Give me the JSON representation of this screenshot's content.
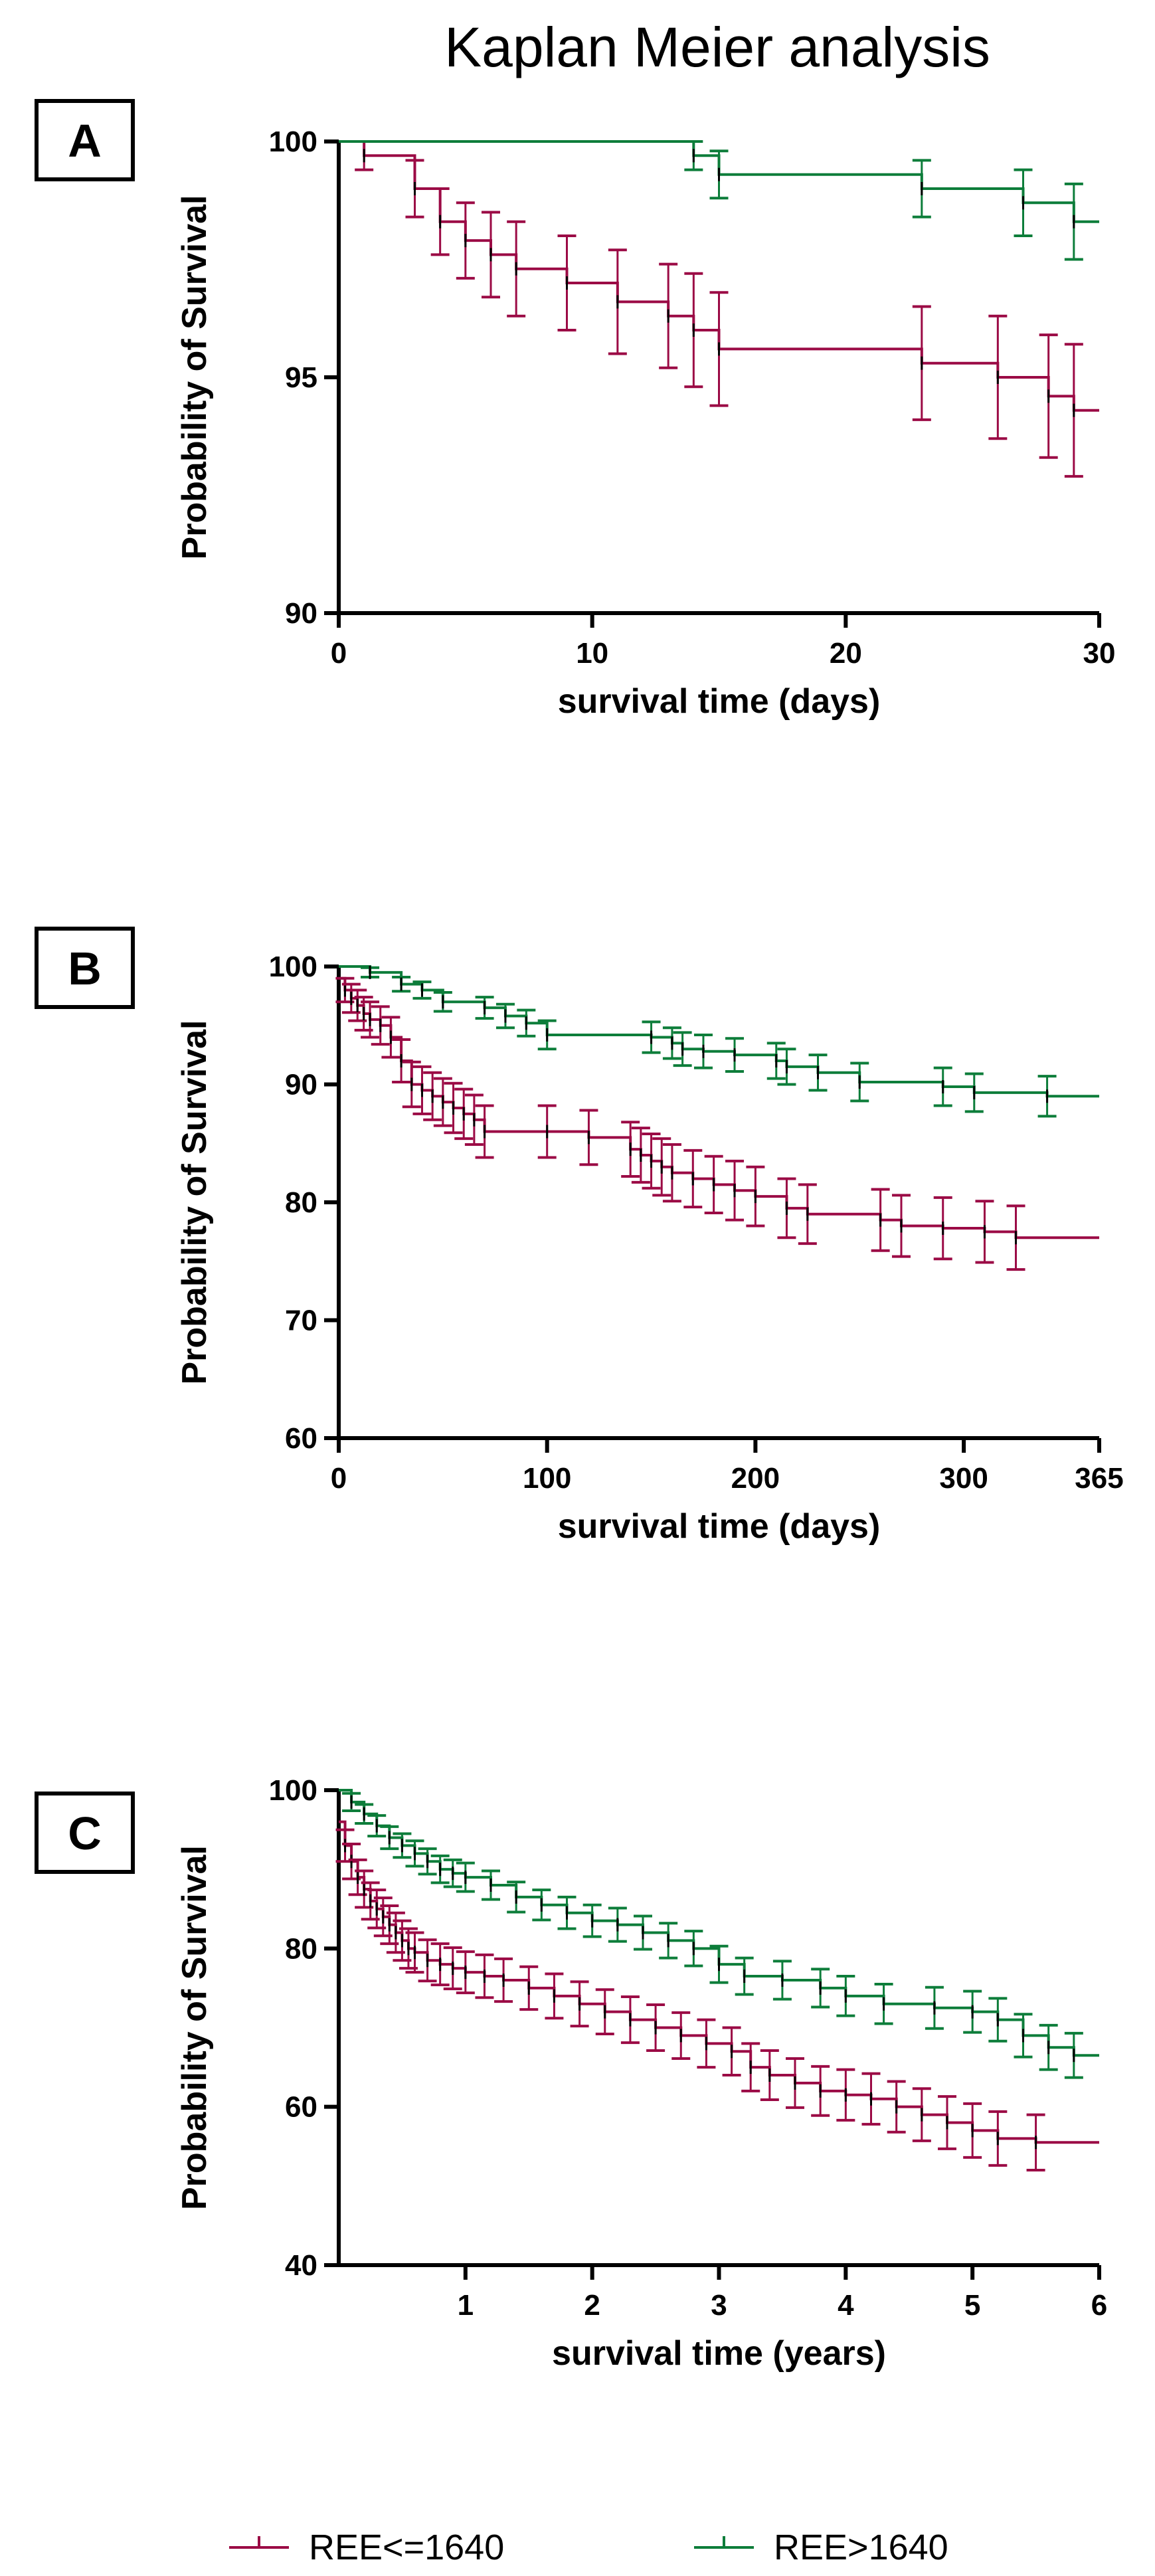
{
  "title": "Kaplan Meier analysis",
  "colors": {
    "low": "#9b0a45",
    "high": "#0d7d3a",
    "axis": "#000000",
    "censor": "#000000"
  },
  "legend": [
    {
      "label": "REE<=1640",
      "color": "#9b0a45"
    },
    {
      "label": "REE>1640",
      "color": "#0d7d3a"
    }
  ],
  "chart_data": [
    {
      "panel": "A",
      "type": "line",
      "step": true,
      "xlabel": "survival time (days)",
      "ylabel": "Probability of Survival",
      "xlim": [
        0,
        30
      ],
      "ylim": [
        90,
        100
      ],
      "xticks": [
        0,
        10,
        20,
        30
      ],
      "xtick_labels": [
        "0",
        "10",
        "20",
        "30"
      ],
      "yticks": [
        90,
        95,
        100
      ],
      "ytick_labels": [
        "90",
        "95",
        "100"
      ],
      "series": [
        {
          "name": "REE<=1640",
          "color": "#9b0a45",
          "x": [
            0,
            1,
            3,
            4,
            5,
            6,
            7,
            9,
            11,
            13,
            14,
            15,
            23,
            26,
            28,
            29
          ],
          "y": [
            100,
            99.7,
            99.0,
            98.3,
            97.9,
            97.6,
            97.3,
            97.0,
            96.6,
            96.3,
            96.0,
            95.6,
            95.3,
            95.0,
            94.6,
            94.3
          ],
          "err": [
            0,
            0.3,
            0.6,
            0.7,
            0.8,
            0.9,
            1.0,
            1.0,
            1.1,
            1.1,
            1.2,
            1.2,
            1.2,
            1.3,
            1.3,
            1.4
          ]
        },
        {
          "name": "REE>1640",
          "color": "#0d7d3a",
          "x": [
            0,
            14,
            15,
            23,
            27,
            29
          ],
          "y": [
            100,
            99.7,
            99.3,
            99.0,
            98.7,
            98.3
          ],
          "err": [
            0,
            0.3,
            0.5,
            0.6,
            0.7,
            0.8
          ]
        }
      ]
    },
    {
      "panel": "B",
      "type": "line",
      "step": true,
      "xlabel": "survival time (days)",
      "ylabel": "Probability of Survival",
      "xlim": [
        0,
        365
      ],
      "ylim": [
        60,
        100
      ],
      "xticks": [
        0,
        100,
        200,
        300,
        365
      ],
      "xtick_labels": [
        "0",
        "100",
        "200",
        "300",
        "365"
      ],
      "yticks": [
        60,
        70,
        80,
        90,
        100
      ],
      "ytick_labels": [
        "60",
        "70",
        "80",
        "90",
        "100"
      ],
      "series": [
        {
          "name": "REE<=1640",
          "color": "#9b0a45",
          "x": [
            0,
            3,
            6,
            9,
            12,
            15,
            20,
            25,
            30,
            35,
            40,
            45,
            50,
            55,
            60,
            65,
            70,
            100,
            120,
            140,
            145,
            150,
            155,
            160,
            170,
            180,
            190,
            200,
            215,
            225,
            260,
            270,
            290,
            310,
            325
          ],
          "y": [
            99,
            98,
            97.3,
            96.7,
            96,
            95.5,
            95,
            94,
            92,
            90,
            89.5,
            89,
            88.5,
            88,
            87.5,
            87,
            86,
            86,
            85.5,
            84.5,
            84,
            83.5,
            83,
            82.5,
            82,
            81.5,
            81,
            80.5,
            79.5,
            79,
            78.5,
            78,
            77.8,
            77.5,
            77
          ],
          "err": [
            0.8,
            1,
            1.2,
            1.3,
            1.4,
            1.5,
            1.6,
            1.7,
            1.8,
            1.9,
            2,
            2,
            2,
            2.1,
            2.1,
            2.1,
            2.2,
            2.2,
            2.3,
            2.3,
            2.3,
            2.3,
            2.4,
            2.4,
            2.4,
            2.4,
            2.5,
            2.5,
            2.5,
            2.5,
            2.6,
            2.6,
            2.6,
            2.6,
            2.7
          ]
        },
        {
          "name": "REE>1640",
          "color": "#0d7d3a",
          "x": [
            0,
            15,
            30,
            40,
            50,
            70,
            80,
            90,
            100,
            150,
            160,
            165,
            175,
            190,
            210,
            215,
            230,
            250,
            290,
            305,
            340
          ],
          "y": [
            100,
            99.5,
            98.5,
            98,
            97,
            96.5,
            95.8,
            95.2,
            94.2,
            94,
            93.5,
            93,
            92.8,
            92.5,
            92,
            91.5,
            91,
            90.2,
            89.8,
            89.3,
            89
          ],
          "err": [
            0,
            0.4,
            0.6,
            0.7,
            0.8,
            0.9,
            1,
            1.1,
            1.2,
            1.3,
            1.3,
            1.4,
            1.4,
            1.4,
            1.5,
            1.5,
            1.5,
            1.6,
            1.6,
            1.6,
            1.7
          ]
        }
      ]
    },
    {
      "panel": "C",
      "type": "line",
      "step": true,
      "xlabel": "survival time (years)",
      "ylabel": "Probability of Survival",
      "xlim": [
        0,
        6
      ],
      "ylim": [
        40,
        100
      ],
      "xticks": [
        1,
        2,
        3,
        4,
        5,
        6
      ],
      "xtick_labels": [
        "1",
        "2",
        "3",
        "4",
        "5",
        "6"
      ],
      "yticks": [
        40,
        60,
        80,
        100
      ],
      "ytick_labels": [
        "40",
        "60",
        "80",
        "100"
      ],
      "series": [
        {
          "name": "REE<=1640",
          "color": "#9b0a45",
          "x": [
            0,
            0.05,
            0.1,
            0.15,
            0.2,
            0.25,
            0.3,
            0.35,
            0.4,
            0.45,
            0.5,
            0.55,
            0.6,
            0.7,
            0.8,
            0.9,
            1.0,
            1.15,
            1.3,
            1.5,
            1.7,
            1.9,
            2.1,
            2.3,
            2.5,
            2.7,
            2.9,
            3.1,
            3.25,
            3.4,
            3.6,
            3.8,
            4.0,
            4.2,
            4.4,
            4.6,
            4.8,
            5.0,
            5.2,
            5.5
          ],
          "y": [
            96,
            93,
            91,
            89,
            87.5,
            86,
            85,
            84,
            83,
            82,
            81,
            80,
            79.5,
            78.5,
            78,
            77.5,
            77,
            76.5,
            76,
            75,
            74,
            73,
            72,
            71,
            70,
            69,
            68,
            67,
            65,
            64,
            63,
            62,
            61.5,
            61,
            60,
            59,
            58,
            57,
            56,
            55.5
          ],
          "err": [
            2,
            2,
            2.2,
            2.2,
            2.3,
            2.3,
            2.4,
            2.4,
            2.4,
            2.5,
            2.5,
            2.5,
            2.5,
            2.6,
            2.6,
            2.6,
            2.6,
            2.7,
            2.7,
            2.7,
            2.8,
            2.8,
            2.8,
            2.9,
            2.9,
            2.9,
            3,
            3,
            3,
            3.1,
            3.1,
            3.1,
            3.2,
            3.2,
            3.2,
            3.3,
            3.3,
            3.4,
            3.4,
            3.5
          ]
        },
        {
          "name": "REE>1640",
          "color": "#0d7d3a",
          "x": [
            0,
            0.1,
            0.2,
            0.3,
            0.4,
            0.5,
            0.6,
            0.7,
            0.8,
            0.9,
            1.0,
            1.2,
            1.4,
            1.6,
            1.8,
            2.0,
            2.2,
            2.4,
            2.6,
            2.8,
            3.0,
            3.2,
            3.5,
            3.8,
            4.0,
            4.3,
            4.7,
            5.0,
            5.2,
            5.4,
            5.6,
            5.8
          ],
          "y": [
            100,
            98.5,
            97,
            95.5,
            94,
            93,
            92,
            91,
            90,
            89.5,
            89,
            88,
            86.5,
            85.5,
            84.5,
            83.5,
            83,
            82,
            81,
            80,
            78,
            76.5,
            76,
            75,
            74,
            73,
            72.5,
            72,
            71,
            69,
            67.5,
            66.5
          ],
          "err": [
            0,
            1.1,
            1.2,
            1.3,
            1.4,
            1.5,
            1.6,
            1.6,
            1.7,
            1.7,
            1.8,
            1.8,
            1.9,
            1.9,
            2,
            2,
            2.1,
            2.1,
            2.2,
            2.2,
            2.3,
            2.3,
            2.4,
            2.4,
            2.5,
            2.5,
            2.6,
            2.6,
            2.7,
            2.7,
            2.8,
            2.8
          ]
        }
      ]
    }
  ]
}
